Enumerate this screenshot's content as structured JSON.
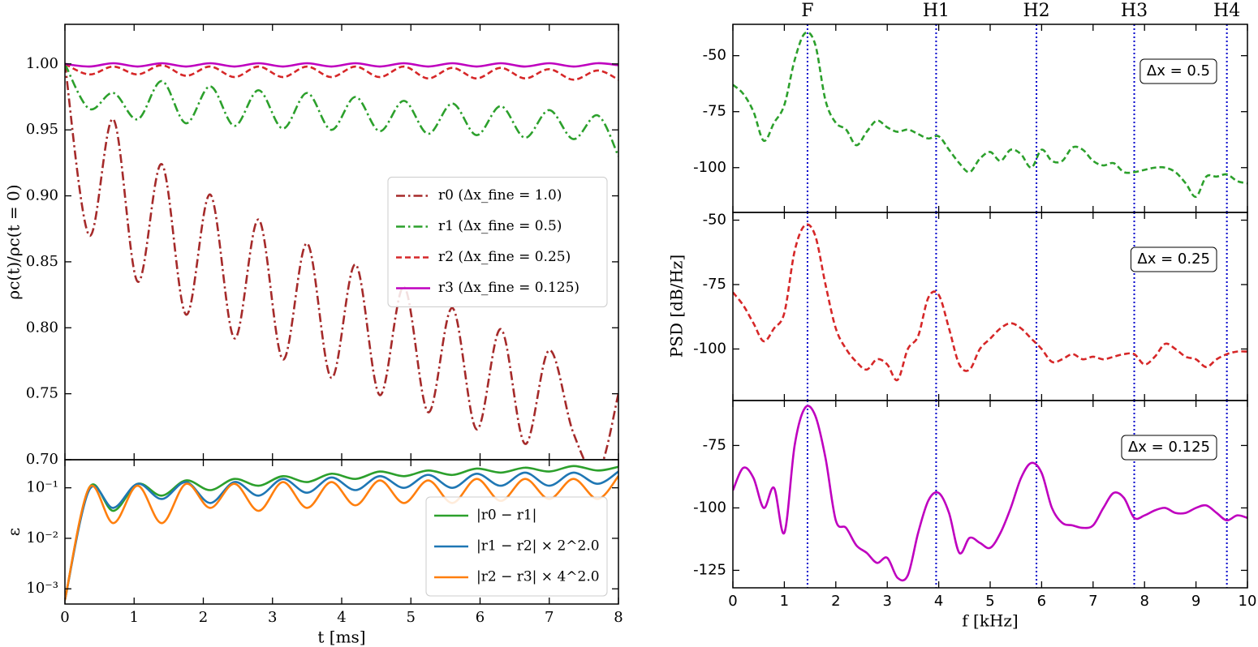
{
  "chart_data": [
    {
      "type": "line",
      "ylabel": "ρc(t)/ρc(t = 0)",
      "legend": "center right",
      "xlim": [
        0,
        8
      ],
      "xticks": [
        0,
        1,
        2,
        3,
        4,
        5,
        6,
        7,
        8
      ],
      "ylim": [
        0.7,
        1.03
      ],
      "yticks": [
        {
          "value": 0.7,
          "label": "0.70"
        },
        {
          "value": 0.75,
          "label": "0.75"
        },
        {
          "value": 0.8,
          "label": "0.80"
        },
        {
          "value": 0.85,
          "label": "0.85"
        },
        {
          "value": 0.9,
          "label": "0.90"
        },
        {
          "value": 0.95,
          "label": "0.95"
        },
        {
          "value": 1.0,
          "label": "1.00"
        }
      ],
      "x": [
        0,
        0.35,
        0.7,
        1.05,
        1.4,
        1.75,
        2.1,
        2.45,
        2.8,
        3.15,
        3.5,
        3.85,
        4.2,
        4.55,
        4.9,
        5.25,
        5.6,
        5.95,
        6.3,
        6.65,
        7.0,
        7.35,
        7.7,
        8.0
      ],
      "series": [
        {
          "name": "r0 (Δx_fine = 1.0)",
          "color": "#a52a2a",
          "linestyle": "dashdot",
          "values": [
            1.0,
            0.87,
            0.958,
            0.835,
            0.924,
            0.81,
            0.901,
            0.792,
            0.882,
            0.776,
            0.864,
            0.762,
            0.848,
            0.749,
            0.831,
            0.736,
            0.815,
            0.723,
            0.799,
            0.712,
            0.783,
            0.72,
            0.69,
            0.75
          ]
        },
        {
          "name": "r1 (Δx_fine = 0.5)",
          "color": "#2ca02c",
          "linestyle": "dashdot",
          "values": [
            1.0,
            0.966,
            0.978,
            0.958,
            0.987,
            0.955,
            0.983,
            0.953,
            0.98,
            0.951,
            0.978,
            0.95,
            0.975,
            0.949,
            0.972,
            0.947,
            0.97,
            0.946,
            0.968,
            0.944,
            0.965,
            0.943,
            0.961,
            0.93
          ]
        },
        {
          "name": "r2 (Δx_fine = 0.25)",
          "color": "#d62728",
          "linestyle": "dashed",
          "values": [
            1.0,
            0.992,
            0.998,
            0.992,
            0.999,
            0.991,
            0.998,
            0.99,
            0.998,
            0.99,
            0.998,
            0.99,
            0.998,
            0.99,
            0.998,
            0.989,
            0.997,
            0.989,
            0.997,
            0.989,
            0.996,
            0.988,
            0.995,
            0.988
          ]
        },
        {
          "name": "r3 (Δx_fine = 0.125)",
          "color": "#bf00bf",
          "linestyle": "solid",
          "values": [
            1.0,
            0.998,
            1.0005,
            0.998,
            1.0005,
            0.998,
            1.0005,
            0.998,
            1.0005,
            0.998,
            1.0005,
            0.998,
            1.0005,
            0.998,
            1.0005,
            0.998,
            1.0005,
            0.998,
            1.0005,
            0.998,
            1.0005,
            0.998,
            1.0005,
            0.999
          ]
        }
      ]
    },
    {
      "type": "line",
      "ylabel": "ε",
      "xlabel": "t [ms]",
      "legend": "lower right",
      "log_y": true,
      "xlim": [
        0,
        8
      ],
      "xticks": [
        0,
        1,
        2,
        3,
        4,
        5,
        6,
        7,
        8
      ],
      "ylim": [
        0.0005,
        0.36
      ],
      "yticks": [
        {
          "value": 0.001,
          "label": "10⁻³"
        },
        {
          "value": 0.01,
          "label": "10⁻²"
        },
        {
          "value": 0.1,
          "label": "10⁻¹"
        }
      ],
      "x": [
        0,
        0.35,
        0.7,
        1.05,
        1.4,
        1.75,
        2.1,
        2.45,
        2.8,
        3.15,
        3.5,
        3.85,
        4.2,
        4.55,
        4.9,
        5.25,
        5.6,
        5.95,
        6.3,
        6.65,
        7.0,
        7.35,
        7.7,
        8.0
      ],
      "series": [
        {
          "name": "|r0 − r1|",
          "color": "#2ca02c",
          "linestyle": "solid",
          "values": [
            0.0006,
            0.1,
            0.035,
            0.12,
            0.07,
            0.14,
            0.09,
            0.15,
            0.11,
            0.17,
            0.13,
            0.19,
            0.15,
            0.21,
            0.17,
            0.22,
            0.18,
            0.24,
            0.2,
            0.25,
            0.21,
            0.27,
            0.22,
            0.26
          ]
        },
        {
          "name": "|r1 − r2| × 2^2.0",
          "color": "#1f77b4",
          "linestyle": "solid",
          "values": [
            0.0006,
            0.09,
            0.04,
            0.12,
            0.06,
            0.13,
            0.05,
            0.13,
            0.07,
            0.15,
            0.08,
            0.16,
            0.09,
            0.17,
            0.1,
            0.18,
            0.1,
            0.19,
            0.11,
            0.2,
            0.11,
            0.2,
            0.12,
            0.21
          ]
        },
        {
          "name": "|r2 − r3| × 4^2.0",
          "color": "#ff7f0e",
          "linestyle": "solid",
          "values": [
            0.0006,
            0.1,
            0.02,
            0.11,
            0.02,
            0.12,
            0.04,
            0.12,
            0.035,
            0.13,
            0.04,
            0.13,
            0.045,
            0.14,
            0.05,
            0.14,
            0.05,
            0.15,
            0.055,
            0.15,
            0.06,
            0.15,
            0.06,
            0.17
          ]
        }
      ]
    },
    {
      "type": "line",
      "annotation": "Δx = 0.5",
      "xlim": [
        0,
        10
      ],
      "xticks": [
        0,
        1,
        2,
        3,
        4,
        5,
        6,
        7,
        8,
        9,
        10
      ],
      "ylim": [
        -120,
        -36
      ],
      "yticks": [
        -100,
        -75,
        -50
      ],
      "vlines": [
        {
          "value": 1.45,
          "label": "F"
        },
        {
          "value": 3.95,
          "label": "H1"
        },
        {
          "value": 5.9,
          "label": "H2"
        },
        {
          "value": 7.8,
          "label": "H3"
        },
        {
          "value": 9.6,
          "label": "H4"
        }
      ],
      "vline_color": "#0000cc",
      "x": [
        0,
        0.2,
        0.4,
        0.6,
        0.8,
        1.0,
        1.2,
        1.4,
        1.6,
        1.8,
        2.0,
        2.2,
        2.4,
        2.6,
        2.8,
        3.0,
        3.2,
        3.4,
        3.6,
        3.8,
        4.0,
        4.2,
        4.4,
        4.6,
        4.8,
        5.0,
        5.2,
        5.4,
        5.6,
        5.8,
        6.0,
        6.2,
        6.4,
        6.6,
        6.8,
        7.0,
        7.2,
        7.4,
        7.6,
        7.8,
        8.0,
        8.2,
        8.4,
        8.6,
        8.8,
        9.0,
        9.2,
        9.4,
        9.6,
        9.8,
        10
      ],
      "series": [
        {
          "color": "#2ca02c",
          "linestyle": "dashed",
          "values": [
            -63,
            -67,
            -75,
            -88,
            -80,
            -72,
            -52,
            -40,
            -45,
            -70,
            -80,
            -83,
            -90,
            -84,
            -79,
            -82,
            -84,
            -83,
            -85,
            -87,
            -86,
            -92,
            -98,
            -102,
            -96,
            -93,
            -97,
            -92,
            -94,
            -100,
            -92,
            -97,
            -97,
            -91,
            -92,
            -97,
            -99,
            -98,
            -102,
            -102,
            -101,
            -100,
            -100,
            -102,
            -107,
            -113,
            -104,
            -104,
            -103,
            -106,
            -107
          ]
        }
      ]
    },
    {
      "type": "line",
      "annotation": "Δx = 0.25",
      "ylabel": "PSD [dB/Hz]",
      "xlim": [
        0,
        10
      ],
      "xticks": [
        0,
        1,
        2,
        3,
        4,
        5,
        6,
        7,
        8,
        9,
        10
      ],
      "ylim": [
        -120,
        -47
      ],
      "yticks": [
        -100,
        -75,
        -50
      ],
      "vlines": [
        1.45,
        3.95,
        5.9,
        7.8,
        9.6
      ],
      "vline_color": "#0000cc",
      "x": [
        0,
        0.2,
        0.4,
        0.6,
        0.8,
        1.0,
        1.2,
        1.4,
        1.6,
        1.8,
        2.0,
        2.2,
        2.4,
        2.6,
        2.8,
        3.0,
        3.2,
        3.4,
        3.6,
        3.8,
        4.0,
        4.2,
        4.4,
        4.6,
        4.8,
        5.0,
        5.2,
        5.4,
        5.6,
        5.8,
        6.0,
        6.2,
        6.4,
        6.6,
        6.8,
        7.0,
        7.2,
        7.4,
        7.6,
        7.8,
        8.0,
        8.2,
        8.4,
        8.6,
        8.8,
        9.0,
        9.2,
        9.4,
        9.6,
        9.8,
        10
      ],
      "series": [
        {
          "color": "#d62728",
          "linestyle": "dashed",
          "values": [
            -78,
            -83,
            -90,
            -97,
            -92,
            -86,
            -62,
            -52,
            -56,
            -75,
            -92,
            -100,
            -105,
            -108,
            -104,
            -106,
            -112,
            -100,
            -95,
            -80,
            -79,
            -92,
            -106,
            -108,
            -100,
            -96,
            -92,
            -90,
            -92,
            -96,
            -100,
            -105,
            -104,
            -102,
            -104,
            -103,
            -104,
            -103,
            -102,
            -102,
            -106,
            -103,
            -98,
            -100,
            -103,
            -104,
            -107,
            -104,
            -102,
            -101,
            -101
          ]
        }
      ]
    },
    {
      "type": "line",
      "annotation": "Δx = 0.125",
      "xlabel": "f [kHz]",
      "xlim": [
        0,
        10
      ],
      "xticks": [
        0,
        1,
        2,
        3,
        4,
        5,
        6,
        7,
        8,
        9,
        10
      ],
      "ylim": [
        -132,
        -57
      ],
      "yticks": [
        -125,
        -100,
        -75
      ],
      "vlines": [
        1.45,
        3.95,
        5.9,
        7.8,
        9.6
      ],
      "vline_color": "#0000cc",
      "x": [
        0,
        0.2,
        0.4,
        0.6,
        0.8,
        1.0,
        1.2,
        1.4,
        1.6,
        1.8,
        2.0,
        2.2,
        2.4,
        2.6,
        2.8,
        3.0,
        3.2,
        3.4,
        3.6,
        3.8,
        4.0,
        4.2,
        4.4,
        4.6,
        4.8,
        5.0,
        5.2,
        5.4,
        5.6,
        5.8,
        6.0,
        6.2,
        6.4,
        6.6,
        6.8,
        7.0,
        7.2,
        7.4,
        7.6,
        7.8,
        8.0,
        8.2,
        8.4,
        8.6,
        8.8,
        9.0,
        9.2,
        9.4,
        9.6,
        9.8,
        10
      ],
      "series": [
        {
          "color": "#bf00bf",
          "linestyle": "solid",
          "values": [
            -93,
            -84,
            -88,
            -100,
            -92,
            -110,
            -75,
            -60,
            -63,
            -80,
            -105,
            -108,
            -115,
            -118,
            -122,
            -120,
            -128,
            -127,
            -110,
            -97,
            -94,
            -102,
            -118,
            -112,
            -114,
            -116,
            -110,
            -100,
            -88,
            -82,
            -86,
            -100,
            -106,
            -107,
            -108,
            -107,
            -100,
            -94,
            -96,
            -104,
            -103,
            -101,
            -100,
            -102,
            -102,
            -100,
            -99,
            -102,
            -105,
            -103,
            -104
          ]
        }
      ]
    }
  ]
}
